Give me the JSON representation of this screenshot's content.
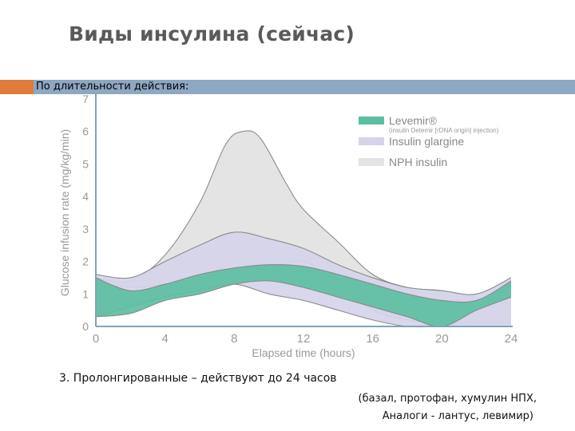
{
  "slide": {
    "title": "Виды инсулина (сейчас)",
    "subtitle": "По длительности действия:",
    "note_main": "3. Пролонгированные – действуют до 24 часов",
    "note_line2": "(базал, протофан, хумулин НПХ,",
    "note_line3": "Аналоги - лантус, левимир)",
    "accent_colors": {
      "orange": "#e07b3a",
      "blue": "#8ea7c2"
    }
  },
  "chart_data": {
    "type": "area",
    "ylabel": "Glucose infusion rate (mg/kg/min)",
    "xlabel": "Elapsed time (hours)",
    "xlim": [
      0,
      24
    ],
    "ylim": [
      0,
      7
    ],
    "xticks": [
      0,
      4,
      8,
      12,
      16,
      20,
      24
    ],
    "yticks": [
      0,
      1,
      2,
      3,
      4,
      5,
      6,
      7
    ],
    "legend_position": "top-right",
    "series": [
      {
        "name": "NPH insulin",
        "legend_sub": "",
        "color": "#e4e4e4",
        "upper": [
          [
            0,
            1.5
          ],
          [
            2,
            1.4
          ],
          [
            4,
            2.2
          ],
          [
            6,
            3.8
          ],
          [
            7.5,
            5.6
          ],
          [
            8.5,
            6.0
          ],
          [
            9.5,
            5.8
          ],
          [
            11,
            4.4
          ],
          [
            12,
            3.6
          ],
          [
            14,
            2.6
          ],
          [
            16,
            1.6
          ],
          [
            18,
            1.2
          ],
          [
            20,
            1.1
          ],
          [
            22,
            0.9
          ],
          [
            24,
            0.7
          ]
        ],
        "lower": [
          [
            0,
            1.4
          ],
          [
            2,
            1.2
          ],
          [
            4,
            1.3
          ],
          [
            6,
            1.4
          ],
          [
            8,
            1.7
          ],
          [
            10,
            1.8
          ],
          [
            12,
            2.0
          ],
          [
            14,
            1.3
          ],
          [
            16,
            0.5
          ],
          [
            18,
            0.2
          ],
          [
            20,
            0.1
          ],
          [
            22,
            0.1
          ],
          [
            24,
            0.1
          ]
        ]
      },
      {
        "name": "Insulin glargine",
        "legend_sub": "",
        "color": "#d6d4ea",
        "upper": [
          [
            0,
            1.6
          ],
          [
            2,
            1.5
          ],
          [
            4,
            2.0
          ],
          [
            6,
            2.5
          ],
          [
            8,
            2.9
          ],
          [
            10,
            2.7
          ],
          [
            12,
            2.4
          ],
          [
            14,
            1.9
          ],
          [
            16,
            1.5
          ],
          [
            18,
            1.2
          ],
          [
            20,
            1.1
          ],
          [
            22,
            1.0
          ],
          [
            24,
            1.5
          ]
        ],
        "lower": [
          [
            0,
            0.3
          ],
          [
            2,
            0.6
          ],
          [
            4,
            0.9
          ],
          [
            6,
            1.1
          ],
          [
            8,
            1.3
          ],
          [
            10,
            1.0
          ],
          [
            12,
            0.8
          ],
          [
            14,
            0.5
          ],
          [
            16,
            0.2
          ],
          [
            18,
            0.0
          ],
          [
            20,
            0.0
          ],
          [
            22,
            0.0
          ],
          [
            24,
            0.0
          ]
        ]
      },
      {
        "name": "Levemir®",
        "legend_sub": "(insulin Detemir [rDNA origin] injection)",
        "color": "#5cbfa2",
        "upper": [
          [
            0,
            1.5
          ],
          [
            2,
            1.1
          ],
          [
            4,
            1.3
          ],
          [
            6,
            1.6
          ],
          [
            8,
            1.8
          ],
          [
            10,
            1.9
          ],
          [
            12,
            1.85
          ],
          [
            14,
            1.6
          ],
          [
            16,
            1.3
          ],
          [
            18,
            1.0
          ],
          [
            20,
            0.8
          ],
          [
            22,
            0.8
          ],
          [
            24,
            1.4
          ]
        ],
        "lower": [
          [
            0,
            0.3
          ],
          [
            2,
            0.4
          ],
          [
            4,
            0.8
          ],
          [
            6,
            1.0
          ],
          [
            8,
            1.3
          ],
          [
            10,
            1.4
          ],
          [
            12,
            1.2
          ],
          [
            14,
            0.9
          ],
          [
            16,
            0.6
          ],
          [
            18,
            0.3
          ],
          [
            20,
            0.0
          ],
          [
            22,
            0.5
          ],
          [
            24,
            0.9
          ]
        ]
      }
    ]
  }
}
